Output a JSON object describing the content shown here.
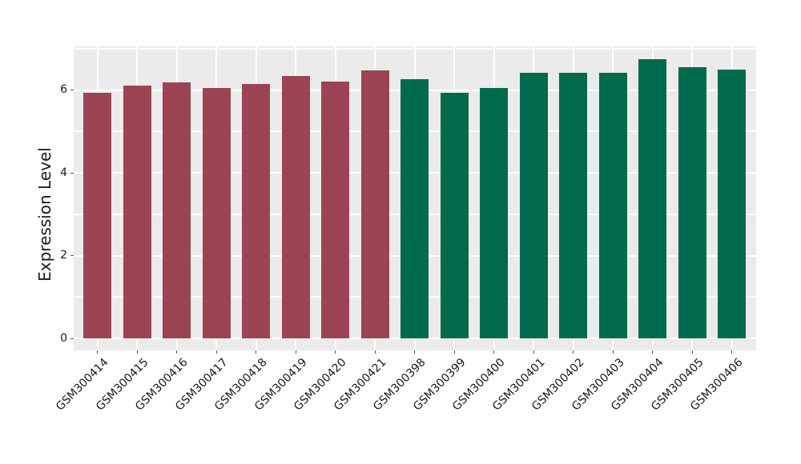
{
  "chart_data": {
    "type": "bar",
    "title": "",
    "xlabel": "",
    "ylabel": "Expression Level",
    "panel_background": "#EBEBEB",
    "grid_color": "#FFFFFF",
    "tick_color": "#555555",
    "text_color": "#1a1a1a",
    "ylim": [
      -0.28,
      7.06
    ],
    "grid": "on",
    "legend_position": "none",
    "gridline_values": [
      0,
      1,
      2,
      3,
      4,
      5,
      6,
      7
    ],
    "ytick_values": [
      0,
      2,
      4,
      6
    ],
    "ytick_labels": [
      "0",
      "2",
      "4",
      "6"
    ],
    "group_colors": {
      "left": "#9C4453",
      "right": "#006B4C"
    },
    "bars": [
      {
        "label": "GSM300414",
        "value": 5.93,
        "color": "#9C4453"
      },
      {
        "label": "GSM300415",
        "value": 6.11,
        "color": "#9C4453"
      },
      {
        "label": "GSM300416",
        "value": 6.19,
        "color": "#9C4453"
      },
      {
        "label": "GSM300417",
        "value": 6.04,
        "color": "#9C4453"
      },
      {
        "label": "GSM300418",
        "value": 6.14,
        "color": "#9C4453"
      },
      {
        "label": "GSM300419",
        "value": 6.33,
        "color": "#9C4453"
      },
      {
        "label": "GSM300420",
        "value": 6.2,
        "color": "#9C4453"
      },
      {
        "label": "GSM300421",
        "value": 6.47,
        "color": "#9C4453"
      },
      {
        "label": "GSM300398",
        "value": 6.26,
        "color": "#006B4C"
      },
      {
        "label": "GSM300399",
        "value": 5.93,
        "color": "#006B4C"
      },
      {
        "label": "GSM300400",
        "value": 6.05,
        "color": "#006B4C"
      },
      {
        "label": "GSM300401",
        "value": 6.41,
        "color": "#006B4C"
      },
      {
        "label": "GSM300402",
        "value": 6.41,
        "color": "#006B4C"
      },
      {
        "label": "GSM300403",
        "value": 6.41,
        "color": "#006B4C"
      },
      {
        "label": "GSM300404",
        "value": 6.75,
        "color": "#006B4C"
      },
      {
        "label": "GSM300405",
        "value": 6.56,
        "color": "#006B4C"
      },
      {
        "label": "GSM300406",
        "value": 6.49,
        "color": "#006B4C"
      }
    ]
  }
}
